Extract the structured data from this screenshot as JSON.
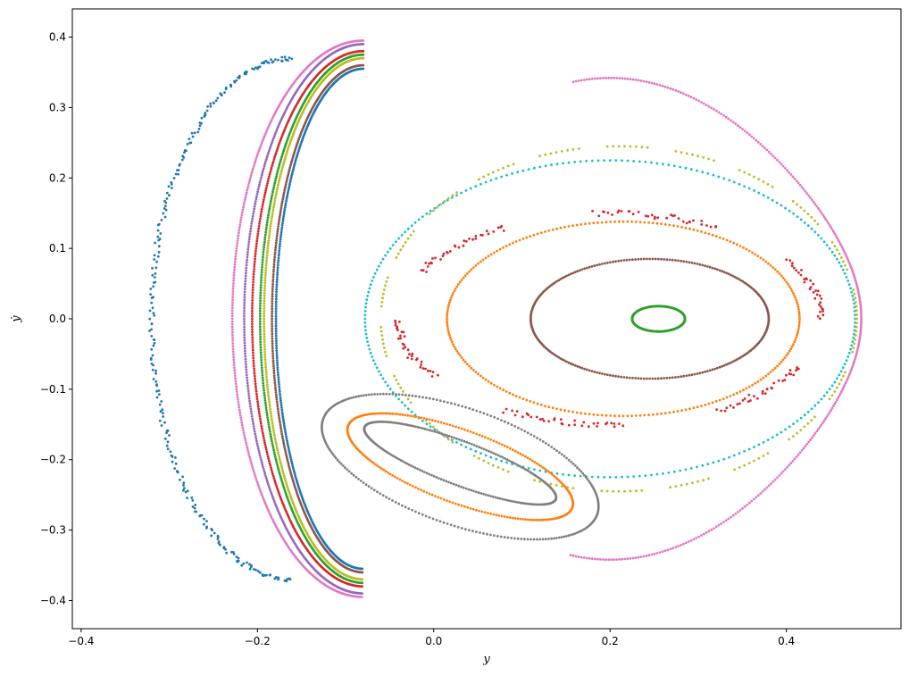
{
  "chart_data": {
    "type": "scatter",
    "title": "",
    "xlabel": "y",
    "ylabel": "ẏ",
    "xlim": [
      -0.41,
      0.53
    ],
    "ylim": [
      -0.44,
      0.44
    ],
    "grid": false,
    "xticks": [
      -0.4,
      -0.2,
      0.0,
      0.2,
      0.4
    ],
    "xtick_labels": [
      "−0.4",
      "−0.2",
      "0.0",
      "0.2",
      "0.4"
    ],
    "yticks": [
      -0.4,
      -0.3,
      -0.2,
      -0.1,
      0.0,
      0.1,
      0.2,
      0.3,
      0.4
    ],
    "ytick_labels": [
      "−0.4",
      "−0.3",
      "−0.2",
      "−0.1",
      "0.0",
      "0.1",
      "0.2",
      "0.3",
      "0.4"
    ],
    "colors": {
      "blue": "#1f77b4",
      "orange": "#ff7f0e",
      "green": "#2ca02c",
      "red": "#d62728",
      "purple": "#9467bd",
      "brown": "#8c564b",
      "pink": "#e377c2",
      "gray": "#7f7f7f",
      "olive": "#bcbd22",
      "cyan": "#17becf"
    },
    "series": [
      {
        "color": "#2ca02c",
        "shape": "ellipse",
        "center": [
          0.255,
          0.0
        ],
        "radius": [
          0.03,
          0.018
        ]
      },
      {
        "color": "#8c564b",
        "shape": "ellipse",
        "center": [
          0.245,
          0.0
        ],
        "radius": [
          0.135,
          0.085
        ]
      },
      {
        "color": "#ff7f0e",
        "shape": "ellipse",
        "center": [
          0.215,
          0.0
        ],
        "radius": [
          0.2,
          0.138
        ]
      },
      {
        "color": "#d62728",
        "shape": "island_chain",
        "center": [
          0.2,
          0.0
        ],
        "radius": [
          0.24,
          0.15
        ]
      },
      {
        "color": "#17becf",
        "shape": "ellipse",
        "center": [
          0.2,
          0.0
        ],
        "radius": [
          0.278,
          0.225
        ]
      },
      {
        "color": "#bcbd22",
        "shape": "dashed_ellipse",
        "center": [
          0.21,
          0.0
        ],
        "radius": [
          0.27,
          0.245
        ]
      },
      {
        "color": "#e377c2",
        "shape": "outer_curve",
        "center": [
          0.2,
          0.0
        ],
        "radius": [
          0.285,
          0.36
        ]
      },
      {
        "color": "#7f7f7f",
        "shape": "island",
        "center": [
          0.03,
          -0.21
        ],
        "radius": [
          0.17,
          0.08
        ]
      },
      {
        "color": "#ff7f0e",
        "shape": "island",
        "center": [
          0.03,
          -0.21
        ],
        "radius": [
          0.14,
          0.05
        ]
      },
      {
        "color": "#7f7f7f",
        "shape": "island",
        "center": [
          0.03,
          -0.205
        ],
        "radius": [
          0.12,
          0.03
        ]
      },
      {
        "color": "#1f77b4",
        "shape": "crescent",
        "center": [
          -0.2,
          0.0
        ],
        "radius": [
          0.22,
          0.355
        ]
      },
      {
        "color": "#8c564b",
        "shape": "crescent",
        "center": [
          -0.2,
          0.0
        ],
        "radius": [
          0.23,
          0.36
        ]
      },
      {
        "color": "#bcbd22",
        "shape": "crescent",
        "center": [
          -0.2,
          0.0
        ],
        "radius": [
          0.25,
          0.37
        ]
      },
      {
        "color": "#2ca02c",
        "shape": "crescent",
        "center": [
          -0.2,
          0.0
        ],
        "radius": [
          0.26,
          0.375
        ]
      },
      {
        "color": "#d62728",
        "shape": "crescent",
        "center": [
          -0.2,
          0.0
        ],
        "radius": [
          0.28,
          0.38
        ]
      },
      {
        "color": "#9467bd",
        "shape": "crescent",
        "center": [
          -0.2,
          0.0
        ],
        "radius": [
          0.3,
          0.39
        ]
      },
      {
        "color": "#e377c2",
        "shape": "crescent",
        "center": [
          -0.2,
          0.0
        ],
        "radius": [
          0.33,
          0.395
        ]
      },
      {
        "color": "#1f77b4",
        "shape": "outer_ring",
        "center": [
          -0.2,
          0.0
        ],
        "radius": [
          0.16,
          0.37
        ]
      }
    ]
  }
}
